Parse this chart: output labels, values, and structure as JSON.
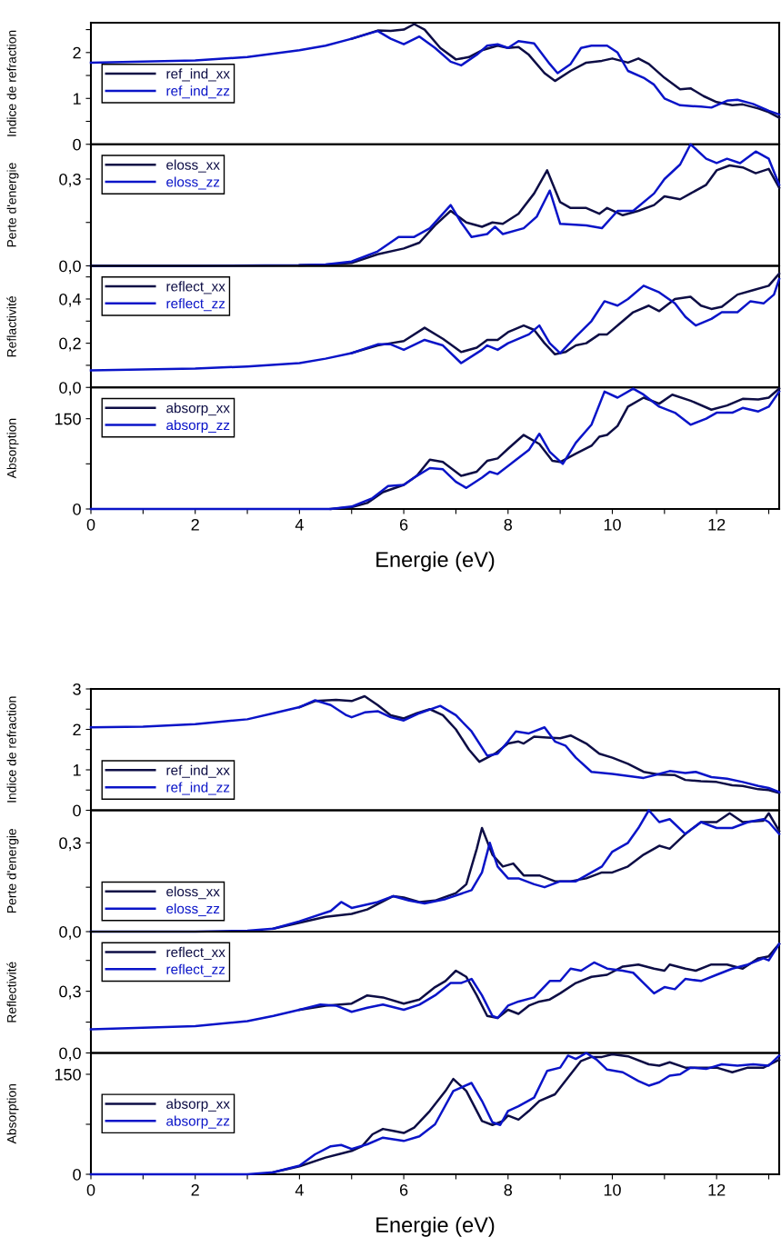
{
  "chart_data": [
    {
      "type": "line",
      "ylabel": "Indice de refraction",
      "xlim": [
        0,
        13.2
      ],
      "ylim": [
        0,
        2.65
      ],
      "yticks": [
        0,
        {
          "value": 0.5,
          "label": null
        },
        1,
        {
          "value": 1.5,
          "label": null
        },
        2,
        {
          "value": 2.5,
          "label": null
        }
      ],
      "tick_labels": "y",
      "legend": "left",
      "line_style": "solid",
      "marker": "none",
      "series": [
        {
          "name": "ref_ind_xx",
          "color": "#0d0d45",
          "x": [
            5,
            5.5,
            5.75,
            6,
            6.2,
            6.4,
            6.7,
            7,
            7.25,
            7.5,
            7.8,
            8,
            8.2,
            8.4,
            8.7,
            8.9,
            9.2,
            9.5,
            9.8,
            10,
            10.3,
            10.5,
            10.7,
            11,
            11.3,
            11.5,
            11.75,
            12,
            12.3,
            12.5,
            12.8,
            13,
            13.2
          ],
          "values": [
            2.3,
            2.48,
            2.47,
            2.5,
            2.62,
            2.5,
            2.1,
            1.85,
            1.9,
            2.05,
            2.15,
            2.1,
            2.12,
            1.95,
            1.55,
            1.38,
            1.6,
            1.78,
            1.82,
            1.87,
            1.78,
            1.87,
            1.75,
            1.45,
            1.2,
            1.22,
            1.05,
            0.92,
            0.85,
            0.87,
            0.78,
            0.7,
            0.58
          ]
        },
        {
          "name": "ref_ind_zz",
          "color": "#0a14c8",
          "x": [
            0,
            2,
            3,
            4,
            4.5,
            5,
            5.5,
            5.75,
            6,
            6.3,
            6.6,
            6.9,
            7.1,
            7.4,
            7.6,
            7.8,
            8,
            8.2,
            8.5,
            8.8,
            8.95,
            9.2,
            9.4,
            9.6,
            9.9,
            10.1,
            10.3,
            10.6,
            10.8,
            11,
            11.3,
            11.7,
            11.9,
            12.2,
            12.4,
            12.7,
            13,
            13.2
          ],
          "values": [
            1.78,
            1.83,
            1.9,
            2.05,
            2.15,
            2.3,
            2.47,
            2.3,
            2.18,
            2.35,
            2.1,
            1.8,
            1.72,
            1.95,
            2.15,
            2.18,
            2.1,
            2.25,
            2.2,
            1.75,
            1.55,
            1.75,
            2.1,
            2.15,
            2.15,
            2.0,
            1.6,
            1.45,
            1.3,
            1.0,
            0.85,
            0.82,
            0.8,
            0.95,
            0.97,
            0.88,
            0.73,
            0.65
          ]
        }
      ]
    },
    {
      "type": "line",
      "ylabel": "Perte d'energie",
      "xlim": [
        0,
        13.2
      ],
      "ylim": [
        0,
        0.42
      ],
      "yticks": [
        {
          "value": 0,
          "label": "0,0"
        },
        {
          "value": 0.15,
          "label": null
        },
        {
          "value": 0.3,
          "label": "0,3"
        }
      ],
      "tick_labels": "y",
      "legend": "top left",
      "line_style": "solid",
      "marker": "none",
      "series": [
        {
          "name": "eloss_xx",
          "color": "#0d0d45",
          "x": [
            4,
            4.5,
            5,
            5.5,
            6,
            6.3,
            6.6,
            6.9,
            7.2,
            7.5,
            7.7,
            7.9,
            8.2,
            8.5,
            8.75,
            9,
            9.2,
            9.5,
            9.75,
            9.9,
            10.2,
            10.5,
            10.8,
            11,
            11.3,
            11.5,
            11.8,
            12,
            12.25,
            12.5,
            12.75,
            13,
            13.2
          ],
          "values": [
            0.002,
            0.004,
            0.01,
            0.04,
            0.06,
            0.08,
            0.14,
            0.19,
            0.15,
            0.135,
            0.15,
            0.145,
            0.18,
            0.25,
            0.33,
            0.22,
            0.2,
            0.2,
            0.18,
            0.2,
            0.175,
            0.19,
            0.21,
            0.24,
            0.23,
            0.25,
            0.28,
            0.33,
            0.347,
            0.34,
            0.32,
            0.335,
            0.27
          ]
        },
        {
          "name": "eloss_zz",
          "color": "#0a14c8",
          "x": [
            0,
            2,
            4,
            4.5,
            5,
            5.5,
            5.9,
            6.2,
            6.5,
            6.9,
            7.1,
            7.3,
            7.6,
            7.75,
            7.9,
            8.3,
            8.55,
            8.8,
            9,
            9.5,
            9.8,
            10.1,
            10.4,
            10.8,
            11,
            11.3,
            11.5,
            11.8,
            12,
            12.2,
            12.45,
            12.75,
            13,
            13.2
          ],
          "values": [
            0,
            0,
            0.002,
            0.005,
            0.015,
            0.05,
            0.1,
            0.1,
            0.13,
            0.21,
            0.15,
            0.1,
            0.11,
            0.135,
            0.11,
            0.13,
            0.17,
            0.26,
            0.145,
            0.14,
            0.13,
            0.19,
            0.19,
            0.25,
            0.3,
            0.35,
            0.42,
            0.37,
            0.355,
            0.37,
            0.355,
            0.395,
            0.37,
            0.28
          ]
        }
      ]
    },
    {
      "type": "line",
      "ylabel": "Reflactivité",
      "xlim": [
        0,
        13.2
      ],
      "ylim": [
        0,
        0.55
      ],
      "yticks": [
        {
          "value": 0,
          "label": "0,0"
        },
        {
          "value": 0.1,
          "label": null
        },
        {
          "value": 0.2,
          "label": "0,2"
        },
        {
          "value": 0.3,
          "label": null
        },
        {
          "value": 0.4,
          "label": "0,4"
        },
        {
          "value": 0.5,
          "label": null
        }
      ],
      "tick_labels": "y",
      "legend": "top left",
      "line_style": "solid",
      "marker": "none",
      "series": [
        {
          "name": "reflect_xx",
          "color": "#0d0d45",
          "x": [
            5,
            5.5,
            5.75,
            6,
            6.4,
            6.75,
            7.1,
            7.4,
            7.6,
            7.8,
            8,
            8.3,
            8.5,
            8.7,
            8.9,
            9.1,
            9.3,
            9.5,
            9.75,
            9.9,
            10.2,
            10.4,
            10.7,
            10.9,
            11.2,
            11.5,
            11.7,
            11.9,
            12.1,
            12.4,
            12.7,
            13,
            13.2
          ],
          "values": [
            0.155,
            0.19,
            0.2,
            0.21,
            0.27,
            0.22,
            0.16,
            0.18,
            0.215,
            0.215,
            0.25,
            0.28,
            0.26,
            0.2,
            0.15,
            0.16,
            0.19,
            0.2,
            0.24,
            0.24,
            0.3,
            0.34,
            0.37,
            0.345,
            0.4,
            0.41,
            0.37,
            0.355,
            0.365,
            0.42,
            0.44,
            0.46,
            0.515
          ]
        },
        {
          "name": "reflect_zz",
          "color": "#0a14c8",
          "x": [
            0,
            2,
            3,
            4,
            4.5,
            5,
            5.5,
            5.75,
            6,
            6.4,
            6.75,
            7.1,
            7.5,
            7.6,
            7.8,
            8,
            8.4,
            8.6,
            8.8,
            9,
            9.3,
            9.6,
            9.85,
            10.1,
            10.3,
            10.6,
            10.9,
            11.2,
            11.4,
            11.6,
            11.9,
            12.1,
            12.4,
            12.65,
            12.9,
            13.1,
            13.2
          ],
          "values": [
            0.077,
            0.085,
            0.095,
            0.11,
            0.13,
            0.155,
            0.195,
            0.195,
            0.17,
            0.215,
            0.19,
            0.11,
            0.17,
            0.19,
            0.17,
            0.2,
            0.24,
            0.28,
            0.2,
            0.155,
            0.23,
            0.3,
            0.39,
            0.37,
            0.4,
            0.46,
            0.43,
            0.38,
            0.32,
            0.28,
            0.31,
            0.34,
            0.34,
            0.39,
            0.38,
            0.42,
            0.49
          ]
        }
      ]
    },
    {
      "type": "line",
      "ylabel": "Absorption",
      "xlabel": "Energie (eV)",
      "xlim": [
        0,
        13.2
      ],
      "xticks": [
        0,
        {
          "value": 1,
          "label": null
        },
        2,
        {
          "value": 3,
          "label": null
        },
        4,
        {
          "value": 5,
          "label": null
        },
        6,
        {
          "value": 7,
          "label": null
        },
        8,
        {
          "value": 9,
          "label": null
        },
        10,
        {
          "value": 11,
          "label": null
        },
        12,
        {
          "value": 13,
          "label": null
        }
      ],
      "ylim": [
        0,
        202
      ],
      "yticks": [
        0,
        {
          "value": 75,
          "label": null
        },
        150
      ],
      "legend": "top left",
      "line_style": "solid",
      "marker": "none",
      "series": [
        {
          "name": "absorp_xx",
          "color": "#0d0d45",
          "x": [
            4.6,
            5,
            5.3,
            5.6,
            6,
            6.25,
            6.5,
            6.75,
            7.1,
            7.4,
            7.6,
            7.8,
            8,
            8.3,
            8.6,
            8.85,
            9,
            9.3,
            9.6,
            9.75,
            9.9,
            10.1,
            10.3,
            10.6,
            10.9,
            11.15,
            11.5,
            11.9,
            12.2,
            12.5,
            12.8,
            13,
            13.2
          ],
          "values": [
            0,
            3,
            10,
            28,
            40,
            55,
            82,
            78,
            55,
            62,
            80,
            84,
            100,
            123,
            108,
            80,
            78,
            92,
            105,
            120,
            123,
            138,
            170,
            185,
            175,
            190,
            180,
            165,
            172,
            183,
            182,
            185,
            200
          ]
        },
        {
          "name": "absorp_zz",
          "color": "#0a14c8",
          "x": [
            0,
            2,
            4,
            4.6,
            5,
            5.4,
            5.7,
            6,
            6.25,
            6.5,
            6.75,
            7,
            7.2,
            7.5,
            7.65,
            7.8,
            8.1,
            8.4,
            8.6,
            8.8,
            9.05,
            9.3,
            9.6,
            9.85,
            10.1,
            10.4,
            10.6,
            10.9,
            11.2,
            11.5,
            11.8,
            12,
            12.3,
            12.5,
            12.8,
            13,
            13.2
          ],
          "values": [
            0,
            0,
            0,
            0,
            4,
            18,
            38,
            40,
            55,
            68,
            66,
            45,
            35,
            52,
            62,
            58,
            78,
            98,
            125,
            95,
            75,
            110,
            140,
            195,
            185,
            200,
            190,
            170,
            160,
            140,
            150,
            160,
            160,
            168,
            162,
            170,
            195
          ]
        }
      ]
    },
    {
      "type": "line",
      "ylabel": "Indice de refraction",
      "xlim": [
        0,
        13.2
      ],
      "ylim": [
        0,
        3
      ],
      "yticks": [
        0,
        {
          "value": 0.5,
          "label": null
        },
        1,
        {
          "value": 1.5,
          "label": null
        },
        2,
        {
          "value": 2.5,
          "label": null
        },
        3
      ],
      "tick_labels": "y",
      "legend": "bottom left",
      "line_style": "solid",
      "marker": "none",
      "series": [
        {
          "name": "ref_ind_xx",
          "color": "#0d0d45",
          "x": [
            4,
            4.3,
            4.7,
            5,
            5.25,
            5.5,
            5.75,
            6,
            6.25,
            6.5,
            6.75,
            7,
            7.25,
            7.45,
            7.75,
            8,
            8.2,
            8.3,
            8.5,
            8.75,
            9,
            9.2,
            9.5,
            9.75,
            10,
            10.3,
            10.6,
            10.9,
            11.2,
            11.4,
            11.7,
            12,
            12.3,
            12.5,
            12.8,
            13,
            13.2
          ],
          "values": [
            2.55,
            2.7,
            2.73,
            2.7,
            2.82,
            2.6,
            2.35,
            2.27,
            2.4,
            2.5,
            2.35,
            2.0,
            1.5,
            1.2,
            1.4,
            1.65,
            1.7,
            1.65,
            1.82,
            1.8,
            1.78,
            1.85,
            1.65,
            1.4,
            1.3,
            1.15,
            0.95,
            0.88,
            0.87,
            0.75,
            0.72,
            0.7,
            0.62,
            0.6,
            0.52,
            0.5,
            0.43
          ]
        },
        {
          "name": "ref_ind_zz",
          "color": "#0a14c8",
          "x": [
            0,
            1,
            2,
            3,
            3.5,
            4,
            4.3,
            4.6,
            4.9,
            5,
            5.25,
            5.5,
            5.75,
            6,
            6.3,
            6.7,
            7,
            7.3,
            7.6,
            7.8,
            8,
            8.15,
            8.4,
            8.7,
            8.9,
            9.1,
            9.3,
            9.6,
            10,
            10.3,
            10.6,
            10.9,
            11.1,
            11.4,
            11.6,
            11.9,
            12.2,
            12.5,
            12.8,
            13,
            13.2
          ],
          "values": [
            2.05,
            2.07,
            2.13,
            2.25,
            2.4,
            2.55,
            2.72,
            2.6,
            2.35,
            2.3,
            2.42,
            2.45,
            2.3,
            2.22,
            2.4,
            2.58,
            2.35,
            1.95,
            1.35,
            1.4,
            1.7,
            1.95,
            1.9,
            2.05,
            1.7,
            1.6,
            1.3,
            0.95,
            0.9,
            0.85,
            0.8,
            0.9,
            0.97,
            0.92,
            0.95,
            0.82,
            0.78,
            0.7,
            0.6,
            0.55,
            0.45
          ]
        }
      ]
    },
    {
      "type": "line",
      "ylabel": "Perte d'energie",
      "xlim": [
        0,
        13.2
      ],
      "ylim": [
        0,
        0.41
      ],
      "yticks": [
        {
          "value": 0,
          "label": "0,0"
        },
        {
          "value": 0.15,
          "label": null
        },
        {
          "value": 0.3,
          "label": "0,3"
        }
      ],
      "tick_labels": "y",
      "legend": "bottom left",
      "line_style": "solid",
      "marker": "none",
      "series": [
        {
          "name": "eloss_xx",
          "color": "#0d0d45",
          "x": [
            3.5,
            4,
            4.5,
            5,
            5.3,
            5.8,
            6,
            6.3,
            6.6,
            7,
            7.2,
            7.4,
            7.5,
            7.7,
            7.9,
            8.1,
            8.3,
            8.6,
            8.9,
            9.2,
            9.5,
            9.8,
            10,
            10.3,
            10.6,
            10.9,
            11.1,
            11.4,
            11.7,
            12,
            12.25,
            12.5,
            12.9,
            13,
            13.2
          ],
          "values": [
            0.01,
            0.03,
            0.05,
            0.06,
            0.075,
            0.12,
            0.115,
            0.1,
            0.105,
            0.13,
            0.16,
            0.28,
            0.35,
            0.26,
            0.22,
            0.23,
            0.19,
            0.19,
            0.17,
            0.17,
            0.18,
            0.2,
            0.2,
            0.22,
            0.26,
            0.29,
            0.28,
            0.33,
            0.37,
            0.37,
            0.4,
            0.37,
            0.375,
            0.4,
            0.34
          ]
        },
        {
          "name": "eloss_zz",
          "color": "#0a14c8",
          "x": [
            0,
            2,
            3,
            3.5,
            4,
            4.6,
            4.8,
            5,
            5.5,
            5.8,
            6.1,
            6.4,
            6.8,
            7.3,
            7.5,
            7.65,
            7.8,
            8,
            8.2,
            8.5,
            8.7,
            9,
            9.3,
            9.5,
            9.8,
            10,
            10.3,
            10.5,
            10.7,
            10.9,
            11.1,
            11.4,
            11.7,
            12,
            12.3,
            12.6,
            12.9,
            13,
            13.2
          ],
          "values": [
            0,
            0,
            0.003,
            0.01,
            0.035,
            0.07,
            0.1,
            0.08,
            0.1,
            0.12,
            0.105,
            0.095,
            0.11,
            0.14,
            0.2,
            0.3,
            0.22,
            0.18,
            0.18,
            0.16,
            0.15,
            0.17,
            0.17,
            0.19,
            0.22,
            0.27,
            0.3,
            0.35,
            0.41,
            0.37,
            0.38,
            0.33,
            0.37,
            0.35,
            0.35,
            0.37,
            0.38,
            0.37,
            0.33
          ]
        }
      ]
    },
    {
      "type": "line",
      "ylabel": "Reflectivité",
      "xlim": [
        0,
        13.2
      ],
      "ylim": [
        0,
        0.59
      ],
      "yticks": [
        {
          "value": 0,
          "label": "0,0"
        },
        {
          "value": 0.15,
          "label": null
        },
        {
          "value": 0.3,
          "label": "0,3"
        },
        {
          "value": 0.45,
          "label": null
        }
      ],
      "tick_labels": "y",
      "legend": "top left",
      "line_style": "solid",
      "marker": "none",
      "series": [
        {
          "name": "reflect_xx",
          "color": "#0d0d45",
          "x": [
            4,
            4.5,
            5,
            5.3,
            5.6,
            6,
            6.3,
            6.6,
            6.8,
            7,
            7.2,
            7.4,
            7.6,
            7.8,
            8,
            8.2,
            8.4,
            8.6,
            8.8,
            9,
            9.3,
            9.6,
            9.9,
            10.2,
            10.5,
            10.8,
            11,
            11.1,
            11.4,
            11.6,
            11.9,
            12.2,
            12.5,
            12.8,
            13,
            13.2
          ],
          "values": [
            0.21,
            0.23,
            0.24,
            0.28,
            0.27,
            0.24,
            0.26,
            0.32,
            0.35,
            0.4,
            0.37,
            0.28,
            0.18,
            0.17,
            0.21,
            0.19,
            0.23,
            0.25,
            0.26,
            0.29,
            0.34,
            0.37,
            0.38,
            0.42,
            0.43,
            0.41,
            0.4,
            0.43,
            0.41,
            0.4,
            0.43,
            0.43,
            0.41,
            0.46,
            0.47,
            0.53
          ]
        },
        {
          "name": "reflect_zz",
          "color": "#0a14c8",
          "x": [
            0,
            2,
            3,
            3.5,
            4,
            4.4,
            4.7,
            5,
            5.3,
            5.6,
            6,
            6.3,
            6.6,
            6.9,
            7.1,
            7.3,
            7.5,
            7.7,
            7.8,
            8,
            8.2,
            8.5,
            8.8,
            9,
            9.2,
            9.4,
            9.65,
            9.9,
            10.2,
            10.4,
            10.6,
            10.8,
            11,
            11.2,
            11.4,
            11.7,
            12,
            12.3,
            12.6,
            12.9,
            13,
            13.2
          ],
          "values": [
            0.115,
            0.13,
            0.155,
            0.18,
            0.21,
            0.235,
            0.23,
            0.2,
            0.22,
            0.235,
            0.21,
            0.235,
            0.28,
            0.34,
            0.34,
            0.36,
            0.28,
            0.18,
            0.17,
            0.23,
            0.25,
            0.27,
            0.35,
            0.35,
            0.41,
            0.4,
            0.44,
            0.41,
            0.4,
            0.39,
            0.34,
            0.29,
            0.32,
            0.31,
            0.36,
            0.35,
            0.38,
            0.41,
            0.43,
            0.46,
            0.45,
            0.53
          ]
        }
      ]
    },
    {
      "type": "line",
      "ylabel": "Absorption",
      "xlabel": "Energie (eV)",
      "xlim": [
        0,
        13.2
      ],
      "xticks": [
        0,
        {
          "value": 1,
          "label": null
        },
        2,
        {
          "value": 3,
          "label": null
        },
        4,
        {
          "value": 5,
          "label": null
        },
        6,
        {
          "value": 7,
          "label": null
        },
        8,
        {
          "value": 9,
          "label": null
        },
        10,
        {
          "value": 11,
          "label": null
        },
        12,
        {
          "value": 13,
          "label": null
        }
      ],
      "ylim": [
        0,
        182
      ],
      "yticks": [
        0,
        {
          "value": 75,
          "label": null
        },
        150
      ],
      "legend": "left",
      "line_style": "solid",
      "marker": "none",
      "series": [
        {
          "name": "absorp_xx",
          "color": "#0d0d45",
          "x": [
            3.5,
            4,
            4.5,
            5,
            5.2,
            5.4,
            5.6,
            5.8,
            6,
            6.2,
            6.5,
            6.8,
            6.95,
            7.2,
            7.5,
            7.7,
            7.9,
            8,
            8.2,
            8.4,
            8.6,
            8.9,
            9.1,
            9.4,
            9.6,
            9.8,
            10,
            10.3,
            10.7,
            10.9,
            11.1,
            11.4,
            11.7,
            12,
            12.3,
            12.6,
            12.9,
            13.2
          ],
          "values": [
            3,
            12,
            25,
            35,
            42,
            60,
            68,
            65,
            62,
            70,
            95,
            125,
            143,
            125,
            80,
            74,
            80,
            88,
            82,
            95,
            110,
            120,
            140,
            170,
            176,
            176,
            180,
            177,
            165,
            163,
            168,
            160,
            160,
            160,
            153,
            160,
            160,
            172
          ]
        },
        {
          "name": "absorp_zz",
          "color": "#0a14c8",
          "x": [
            0,
            2,
            3,
            3.5,
            4,
            4.3,
            4.6,
            4.8,
            5,
            5.3,
            5.6,
            6,
            6.3,
            6.6,
            6.95,
            7.3,
            7.5,
            7.7,
            7.85,
            8,
            8.2,
            8.5,
            8.75,
            9,
            9.15,
            9.3,
            9.5,
            9.7,
            9.9,
            10.2,
            10.5,
            10.7,
            10.9,
            11.1,
            11.3,
            11.5,
            11.8,
            12.1,
            12.4,
            12.7,
            13,
            13.2
          ],
          "values": [
            0,
            0,
            0,
            3,
            13,
            30,
            42,
            44,
            38,
            45,
            55,
            50,
            57,
            75,
            125,
            137,
            110,
            78,
            74,
            95,
            102,
            115,
            155,
            160,
            178,
            173,
            182,
            172,
            157,
            153,
            140,
            133,
            138,
            148,
            150,
            160,
            158,
            165,
            163,
            165,
            163,
            178
          ]
        }
      ]
    }
  ]
}
